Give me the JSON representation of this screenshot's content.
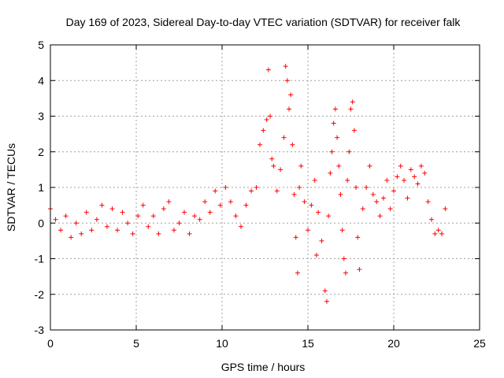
{
  "chart_data": {
    "type": "scatter",
    "title": "Day 169 of 2023, Sidereal Day-to-day VTEC variation (SDTVAR) for receiver falk",
    "xlabel": "GPS time / hours",
    "ylabel": "SDTVAR / TECUs",
    "xlim": [
      0,
      25
    ],
    "ylim": [
      -3,
      5
    ],
    "xticks": [
      "0",
      "5",
      "10",
      "15",
      "20",
      "25"
    ],
    "yticks": [
      "-3",
      "-2",
      "-1",
      "0",
      "1",
      "2",
      "3",
      "4",
      "5"
    ],
    "grid": true,
    "marker": "+",
    "color": "#ff0000",
    "series": [
      {
        "name": "SDTVAR",
        "x": [
          0.0,
          0.3,
          0.6,
          0.9,
          1.2,
          1.5,
          1.8,
          2.1,
          2.4,
          2.7,
          3.0,
          3.3,
          3.6,
          3.9,
          4.2,
          4.5,
          4.8,
          5.1,
          5.4,
          5.7,
          6.0,
          6.3,
          6.6,
          6.9,
          7.2,
          7.5,
          7.8,
          8.1,
          8.4,
          8.7,
          9.0,
          9.3,
          9.6,
          9.9,
          10.2,
          10.5,
          10.8,
          11.1,
          11.4,
          11.7,
          12.0,
          12.2,
          12.4,
          12.6,
          12.7,
          12.8,
          12.9,
          13.0,
          13.2,
          13.4,
          13.6,
          13.7,
          13.8,
          13.9,
          14.0,
          14.1,
          14.2,
          14.3,
          14.4,
          14.5,
          14.6,
          14.8,
          15.0,
          15.2,
          15.4,
          15.5,
          15.6,
          15.8,
          16.0,
          16.1,
          16.2,
          16.3,
          16.4,
          16.5,
          16.6,
          16.7,
          16.8,
          16.9,
          17.0,
          17.1,
          17.2,
          17.3,
          17.4,
          17.5,
          17.6,
          17.7,
          17.8,
          17.9,
          18.0,
          18.2,
          18.4,
          18.6,
          18.8,
          19.0,
          19.2,
          19.4,
          19.6,
          19.8,
          20.0,
          20.2,
          20.4,
          20.6,
          20.8,
          21.0,
          21.2,
          21.4,
          21.6,
          21.8,
          22.0,
          22.2,
          22.4,
          22.6,
          22.8,
          23.0
        ],
        "y": [
          0.4,
          0.1,
          -0.2,
          0.2,
          -0.4,
          0.0,
          -0.3,
          0.3,
          -0.2,
          0.1,
          0.5,
          -0.1,
          0.4,
          -0.2,
          0.3,
          0.0,
          -0.3,
          0.2,
          0.5,
          -0.1,
          0.2,
          -0.3,
          0.4,
          0.6,
          -0.2,
          0.0,
          0.3,
          -0.3,
          0.2,
          0.1,
          0.6,
          0.3,
          0.9,
          0.5,
          1.0,
          0.6,
          0.2,
          -0.1,
          0.5,
          0.9,
          1.0,
          2.2,
          2.6,
          2.9,
          4.3,
          3.0,
          1.8,
          1.6,
          0.9,
          1.5,
          2.4,
          4.4,
          4.0,
          3.2,
          3.6,
          2.2,
          0.8,
          -0.4,
          -1.4,
          1.0,
          1.6,
          0.6,
          -0.2,
          0.5,
          1.2,
          -0.9,
          0.3,
          -0.5,
          -1.9,
          -2.2,
          0.2,
          1.4,
          2.0,
          2.8,
          3.2,
          2.4,
          1.6,
          0.8,
          -0.2,
          -1.0,
          -1.4,
          1.2,
          2.0,
          3.2,
          3.4,
          2.6,
          1.0,
          -0.4,
          -1.3,
          0.4,
          1.0,
          1.6,
          0.8,
          0.6,
          0.2,
          0.7,
          1.2,
          0.4,
          0.9,
          1.3,
          1.6,
          1.2,
          0.7,
          1.5,
          1.3,
          1.1,
          1.6,
          1.4,
          0.6,
          0.1,
          -0.3,
          -0.2,
          -0.3,
          0.4
        ]
      }
    ]
  }
}
